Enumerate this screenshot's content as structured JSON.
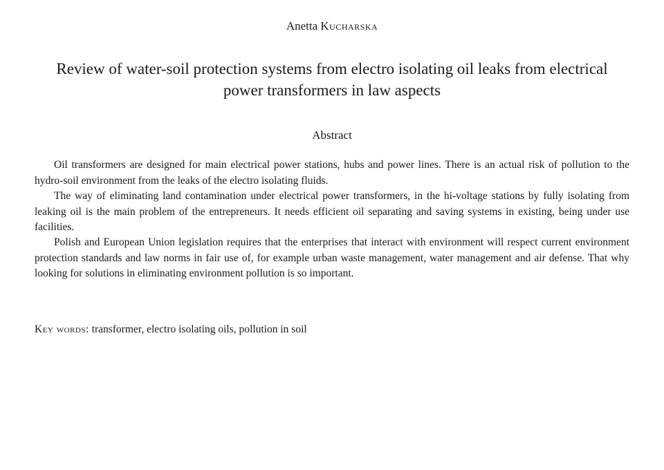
{
  "author": {
    "first_name": "Anetta",
    "surname": "Kucharska"
  },
  "title": "Review of water-soil protection systems from electro isolating oil leaks from electrical power transformers in law aspects",
  "abstract_label": "Abstract",
  "paragraphs": [
    "Oil transformers are designed for main electrical power stations, hubs and power lines. There is an actual risk of pollution to the hydro-soil environment from the leaks of the electro isolating fluids.",
    "The way of eliminating land contamination under electrical power transformers, in the hi-voltage stations by fully isolating from leaking oil is the main problem of the entrepreneurs. It needs efficient oil separating and saving systems in existing, being under use facilities.",
    "Polish and European Union legislation requires that the enterprises that interact with environment will respect current environment protection standards and law norms in fair use of, for example urban waste management, water management and air defense. That why looking for solutions in eliminating environment pollution is so important."
  ],
  "keywords_label": "Key words:",
  "keywords_text": " transformer, electro isolating oils, pollution in soil",
  "styling": {
    "background_color": "#ffffff",
    "text_color": "#1a1a1a",
    "font_family": "Georgia, Times New Roman, serif",
    "author_fontsize": 17,
    "title_fontsize": 23,
    "abstract_label_fontsize": 17,
    "body_fontsize": 15.5,
    "body_line_height": 1.45,
    "text_indent": 28
  }
}
